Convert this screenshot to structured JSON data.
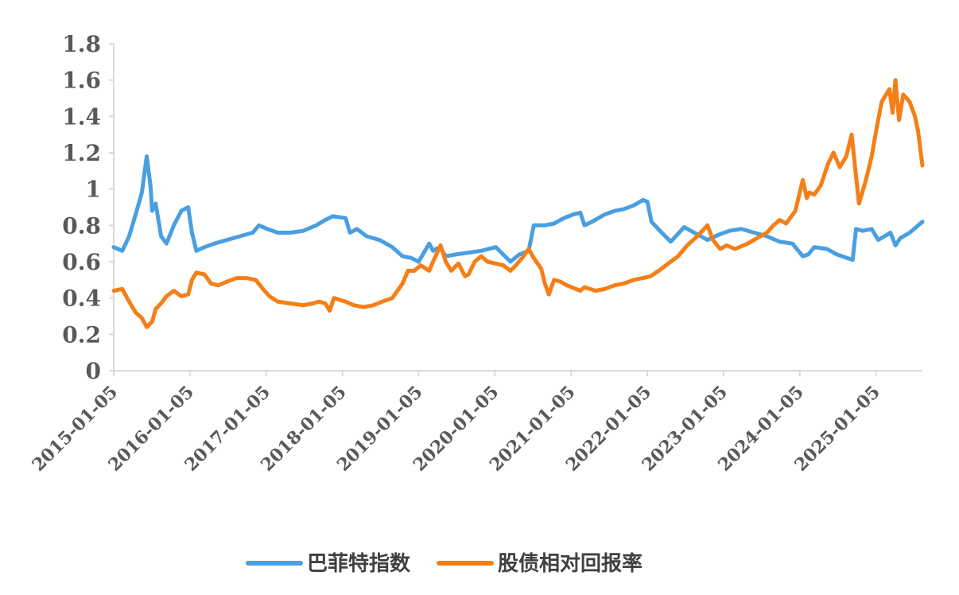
{
  "chart_data": {
    "type": "line",
    "title": "",
    "xlabel": "",
    "ylabel": "",
    "ylim": [
      0,
      1.8
    ],
    "yticks": [
      "0",
      "0.2",
      "0.4",
      "0.6",
      "0.8",
      "1",
      "1.2",
      "1.4",
      "1.6",
      "1.8"
    ],
    "xticks": [
      "2015-01-05",
      "2016-01-05",
      "2017-01-05",
      "2018-01-05",
      "2019-01-05",
      "2020-01-05",
      "2021-01-05",
      "2022-01-05",
      "2023-01-05",
      "2024-01-05",
      "2025-01-05"
    ],
    "xlim": [
      "2015-01-05",
      "2025-08-15"
    ],
    "grid": false,
    "legend_position": "bottom",
    "series": [
      {
        "name": "巴菲特指数",
        "color": "#4a9fe0",
        "points": [
          [
            "2015-01-05",
            0.68
          ],
          [
            "2015-02-15",
            0.66
          ],
          [
            "2015-03-20",
            0.74
          ],
          [
            "2015-04-20",
            0.86
          ],
          [
            "2015-05-20",
            0.98
          ],
          [
            "2015-06-12",
            1.18
          ],
          [
            "2015-06-30",
            1.02
          ],
          [
            "2015-07-08",
            0.88
          ],
          [
            "2015-07-25",
            0.92
          ],
          [
            "2015-08-20",
            0.74
          ],
          [
            "2015-09-15",
            0.7
          ],
          [
            "2015-10-20",
            0.8
          ],
          [
            "2015-11-25",
            0.88
          ],
          [
            "2015-12-28",
            0.9
          ],
          [
            "2016-01-15",
            0.76
          ],
          [
            "2016-02-05",
            0.66
          ],
          [
            "2016-03-15",
            0.68
          ],
          [
            "2016-05-01",
            0.7
          ],
          [
            "2016-07-01",
            0.72
          ],
          [
            "2016-09-01",
            0.74
          ],
          [
            "2016-11-01",
            0.76
          ],
          [
            "2016-12-01",
            0.8
          ],
          [
            "2017-01-10",
            0.78
          ],
          [
            "2017-03-01",
            0.76
          ],
          [
            "2017-05-01",
            0.76
          ],
          [
            "2017-07-01",
            0.77
          ],
          [
            "2017-09-01",
            0.8
          ],
          [
            "2017-10-15",
            0.83
          ],
          [
            "2017-11-20",
            0.85
          ],
          [
            "2018-01-20",
            0.84
          ],
          [
            "2018-02-10",
            0.76
          ],
          [
            "2018-03-15",
            0.78
          ],
          [
            "2018-05-01",
            0.74
          ],
          [
            "2018-07-01",
            0.72
          ],
          [
            "2018-09-01",
            0.68
          ],
          [
            "2018-10-20",
            0.63
          ],
          [
            "2018-12-01",
            0.62
          ],
          [
            "2019-01-05",
            0.6
          ],
          [
            "2019-02-25",
            0.7
          ],
          [
            "2019-03-15",
            0.66
          ],
          [
            "2019-04-15",
            0.68
          ],
          [
            "2019-05-15",
            0.63
          ],
          [
            "2019-07-01",
            0.64
          ],
          [
            "2019-09-01",
            0.65
          ],
          [
            "2019-11-01",
            0.66
          ],
          [
            "2020-01-10",
            0.68
          ],
          [
            "2020-03-20",
            0.6
          ],
          [
            "2020-05-01",
            0.64
          ],
          [
            "2020-06-15",
            0.66
          ],
          [
            "2020-07-10",
            0.8
          ],
          [
            "2020-09-01",
            0.8
          ],
          [
            "2020-10-15",
            0.81
          ],
          [
            "2020-12-01",
            0.84
          ],
          [
            "2021-01-15",
            0.86
          ],
          [
            "2021-02-18",
            0.87
          ],
          [
            "2021-03-10",
            0.8
          ],
          [
            "2021-04-15",
            0.82
          ],
          [
            "2021-06-15",
            0.86
          ],
          [
            "2021-08-01",
            0.88
          ],
          [
            "2021-09-15",
            0.89
          ],
          [
            "2021-11-01",
            0.91
          ],
          [
            "2021-12-15",
            0.94
          ],
          [
            "2022-01-05",
            0.93
          ],
          [
            "2022-01-25",
            0.82
          ],
          [
            "2022-03-15",
            0.76
          ],
          [
            "2022-04-27",
            0.71
          ],
          [
            "2022-06-30",
            0.79
          ],
          [
            "2022-08-01",
            0.77
          ],
          [
            "2022-10-20",
            0.72
          ],
          [
            "2022-12-15",
            0.75
          ],
          [
            "2023-02-01",
            0.77
          ],
          [
            "2023-04-01",
            0.78
          ],
          [
            "2023-06-01",
            0.76
          ],
          [
            "2023-08-01",
            0.74
          ],
          [
            "2023-10-01",
            0.71
          ],
          [
            "2023-12-01",
            0.7
          ],
          [
            "2024-01-20",
            0.63
          ],
          [
            "2024-02-15",
            0.64
          ],
          [
            "2024-03-15",
            0.68
          ],
          [
            "2024-05-15",
            0.67
          ],
          [
            "2024-07-01",
            0.64
          ],
          [
            "2024-09-15",
            0.61
          ],
          [
            "2024-10-01",
            0.78
          ],
          [
            "2024-11-01",
            0.77
          ],
          [
            "2024-12-15",
            0.78
          ],
          [
            "2025-01-15",
            0.72
          ],
          [
            "2025-02-15",
            0.74
          ],
          [
            "2025-03-15",
            0.76
          ],
          [
            "2025-04-08",
            0.69
          ],
          [
            "2025-05-01",
            0.73
          ],
          [
            "2025-06-15",
            0.76
          ],
          [
            "2025-08-15",
            0.82
          ]
        ]
      },
      {
        "name": "股债相对回报率",
        "color": "#f57f17",
        "points": [
          [
            "2015-01-05",
            0.44
          ],
          [
            "2015-02-15",
            0.45
          ],
          [
            "2015-03-20",
            0.38
          ],
          [
            "2015-04-20",
            0.32
          ],
          [
            "2015-05-20",
            0.29
          ],
          [
            "2015-06-12",
            0.24
          ],
          [
            "2015-07-08",
            0.27
          ],
          [
            "2015-07-25",
            0.34
          ],
          [
            "2015-08-20",
            0.37
          ],
          [
            "2015-09-15",
            0.41
          ],
          [
            "2015-10-20",
            0.44
          ],
          [
            "2015-11-25",
            0.41
          ],
          [
            "2015-12-28",
            0.42
          ],
          [
            "2016-01-15",
            0.5
          ],
          [
            "2016-02-05",
            0.54
          ],
          [
            "2016-03-15",
            0.53
          ],
          [
            "2016-04-15",
            0.48
          ],
          [
            "2016-05-20",
            0.47
          ],
          [
            "2016-07-01",
            0.49
          ],
          [
            "2016-08-15",
            0.51
          ],
          [
            "2016-10-01",
            0.51
          ],
          [
            "2016-11-15",
            0.5
          ],
          [
            "2016-12-20",
            0.45
          ],
          [
            "2017-01-20",
            0.41
          ],
          [
            "2017-03-01",
            0.38
          ],
          [
            "2017-05-01",
            0.37
          ],
          [
            "2017-07-01",
            0.36
          ],
          [
            "2017-08-15",
            0.37
          ],
          [
            "2017-09-15",
            0.38
          ],
          [
            "2017-10-15",
            0.37
          ],
          [
            "2017-11-05",
            0.33
          ],
          [
            "2017-11-25",
            0.4
          ],
          [
            "2018-01-20",
            0.38
          ],
          [
            "2018-03-01",
            0.36
          ],
          [
            "2018-04-15",
            0.35
          ],
          [
            "2018-06-01",
            0.36
          ],
          [
            "2018-07-15",
            0.38
          ],
          [
            "2018-09-01",
            0.4
          ],
          [
            "2018-10-20",
            0.48
          ],
          [
            "2018-11-15",
            0.55
          ],
          [
            "2018-12-15",
            0.55
          ],
          [
            "2019-01-15",
            0.58
          ],
          [
            "2019-02-25",
            0.55
          ],
          [
            "2019-03-15",
            0.6
          ],
          [
            "2019-04-20",
            0.69
          ],
          [
            "2019-05-15",
            0.6
          ],
          [
            "2019-06-10",
            0.55
          ],
          [
            "2019-07-15",
            0.59
          ],
          [
            "2019-08-15",
            0.52
          ],
          [
            "2019-09-01",
            0.53
          ],
          [
            "2019-10-01",
            0.6
          ],
          [
            "2019-11-01",
            0.63
          ],
          [
            "2019-12-01",
            0.6
          ],
          [
            "2020-01-10",
            0.59
          ],
          [
            "2020-02-15",
            0.58
          ],
          [
            "2020-03-20",
            0.55
          ],
          [
            "2020-04-15",
            0.58
          ],
          [
            "2020-05-15",
            0.62
          ],
          [
            "2020-06-15",
            0.67
          ],
          [
            "2020-07-10",
            0.62
          ],
          [
            "2020-08-15",
            0.56
          ],
          [
            "2020-09-01",
            0.48
          ],
          [
            "2020-09-20",
            0.42
          ],
          [
            "2020-10-15",
            0.5
          ],
          [
            "2020-11-15",
            0.49
          ],
          [
            "2020-12-15",
            0.47
          ],
          [
            "2021-02-18",
            0.44
          ],
          [
            "2021-03-10",
            0.46
          ],
          [
            "2021-05-01",
            0.44
          ],
          [
            "2021-06-15",
            0.45
          ],
          [
            "2021-08-01",
            0.47
          ],
          [
            "2021-09-15",
            0.48
          ],
          [
            "2021-11-01",
            0.5
          ],
          [
            "2021-12-15",
            0.51
          ],
          [
            "2022-01-20",
            0.52
          ],
          [
            "2022-03-01",
            0.55
          ],
          [
            "2022-04-27",
            0.6
          ],
          [
            "2022-06-01",
            0.63
          ],
          [
            "2022-07-15",
            0.69
          ],
          [
            "2022-09-01",
            0.74
          ],
          [
            "2022-10-20",
            0.8
          ],
          [
            "2022-11-15",
            0.72
          ],
          [
            "2022-12-20",
            0.67
          ],
          [
            "2023-01-20",
            0.69
          ],
          [
            "2023-03-01",
            0.67
          ],
          [
            "2023-05-01",
            0.7
          ],
          [
            "2023-06-15",
            0.73
          ],
          [
            "2023-08-01",
            0.76
          ],
          [
            "2023-09-01",
            0.8
          ],
          [
            "2023-10-01",
            0.83
          ],
          [
            "2023-11-01",
            0.81
          ],
          [
            "2023-12-15",
            0.88
          ],
          [
            "2024-01-20",
            1.05
          ],
          [
            "2024-02-08",
            0.95
          ],
          [
            "2024-02-20",
            0.98
          ],
          [
            "2024-03-15",
            0.97
          ],
          [
            "2024-04-15",
            1.02
          ],
          [
            "2024-05-20",
            1.14
          ],
          [
            "2024-06-15",
            1.2
          ],
          [
            "2024-07-15",
            1.12
          ],
          [
            "2024-08-15",
            1.18
          ],
          [
            "2024-09-10",
            1.3
          ],
          [
            "2024-09-30",
            1.08
          ],
          [
            "2024-10-15",
            0.92
          ],
          [
            "2024-11-15",
            1.04
          ],
          [
            "2024-12-15",
            1.18
          ],
          [
            "2025-01-10",
            1.35
          ],
          [
            "2025-02-01",
            1.48
          ],
          [
            "2025-03-10",
            1.55
          ],
          [
            "2025-03-25",
            1.42
          ],
          [
            "2025-04-08",
            1.6
          ],
          [
            "2025-04-25",
            1.38
          ],
          [
            "2025-05-15",
            1.52
          ],
          [
            "2025-06-15",
            1.48
          ],
          [
            "2025-07-10",
            1.4
          ],
          [
            "2025-07-25",
            1.32
          ],
          [
            "2025-08-15",
            1.13
          ]
        ]
      }
    ]
  }
}
